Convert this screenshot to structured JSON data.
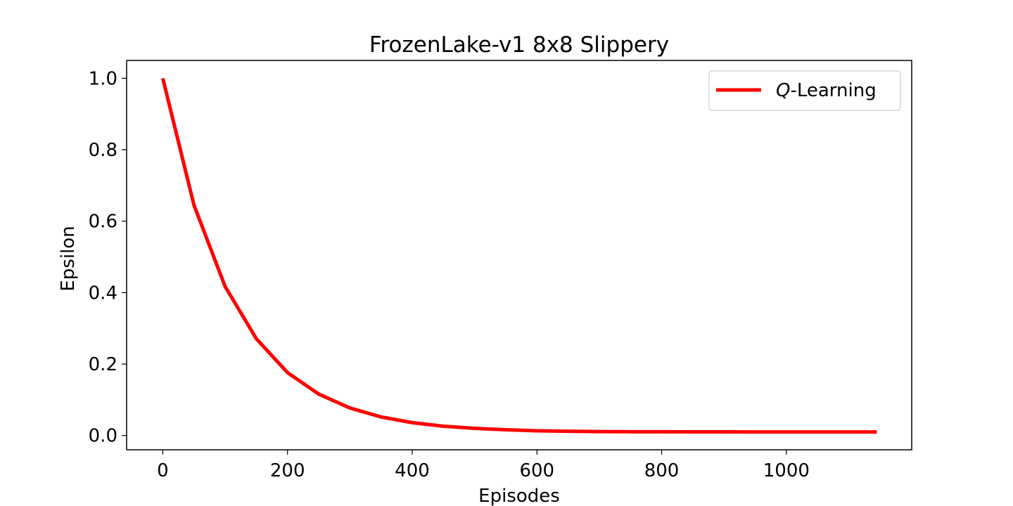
{
  "chart_data": {
    "type": "line",
    "title": "FrozenLake-v1 8x8 Slippery",
    "xlabel": "Episodes",
    "ylabel": "Epsilon",
    "xlim": [
      -58,
      1201
    ],
    "ylim": [
      -0.04,
      1.05
    ],
    "xticks": [
      0,
      200,
      400,
      600,
      800,
      1000
    ],
    "xtick_labels": [
      "0",
      "200",
      "400",
      "600",
      "800",
      "1000"
    ],
    "yticks": [
      0.0,
      0.2,
      0.4,
      0.6,
      0.8,
      1.0
    ],
    "ytick_labels": [
      "0.0",
      "0.2",
      "0.4",
      "0.6",
      "0.8",
      "1.0"
    ],
    "grid": false,
    "legend": {
      "placement": "top-right",
      "entries": [
        {
          "italic": "Q",
          "rest": "-Learning",
          "color": "#ff0000"
        }
      ]
    },
    "series": [
      {
        "name": "Q-Learning",
        "color": "#ff0000",
        "x": [
          0,
          50,
          100,
          150,
          200,
          250,
          300,
          350,
          400,
          450,
          500,
          550,
          600,
          650,
          700,
          750,
          800,
          850,
          900,
          950,
          1000,
          1050,
          1100,
          1145
        ],
        "y": [
          1.0,
          0.645,
          0.417,
          0.271,
          0.176,
          0.116,
          0.077,
          0.052,
          0.036,
          0.026,
          0.02,
          0.016,
          0.013,
          0.012,
          0.011,
          0.0105,
          0.0103,
          0.0102,
          0.0101,
          0.01,
          0.01,
          0.01,
          0.01,
          0.01
        ]
      }
    ]
  }
}
